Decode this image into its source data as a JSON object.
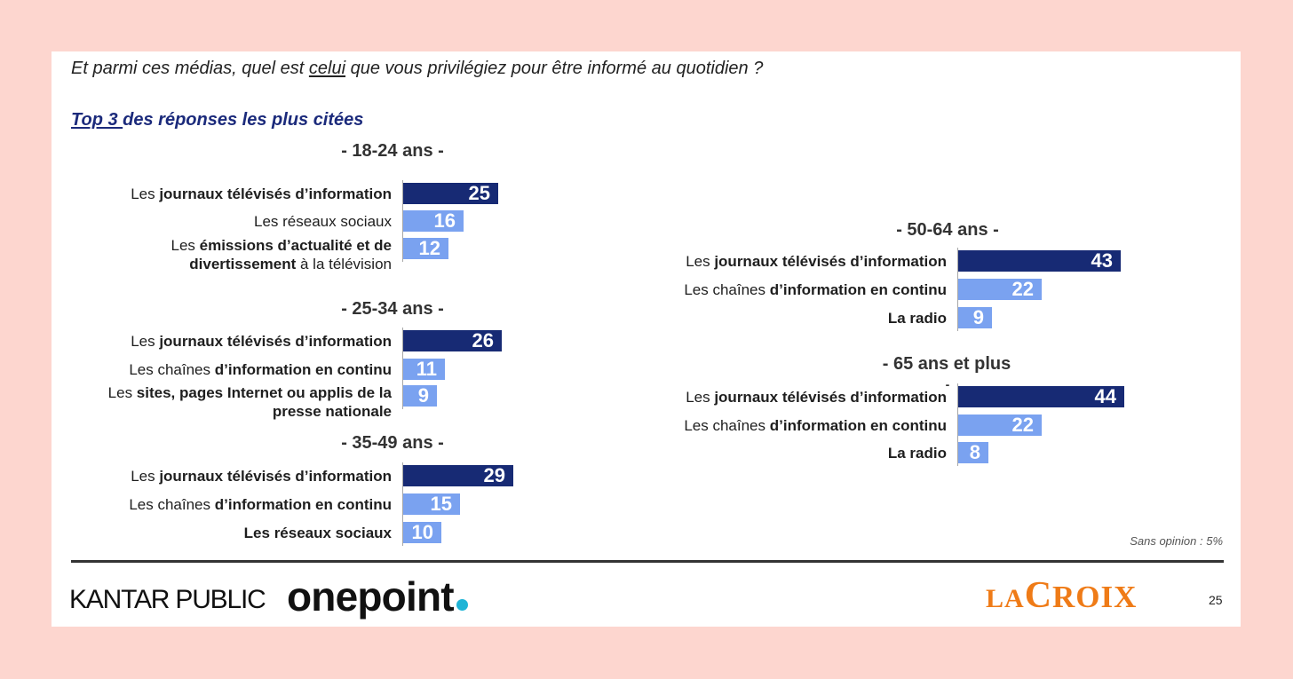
{
  "header": {
    "question_before": "Et parmi ces médias, quel est ",
    "question_underlined": "celui",
    "question_after": " que vous privilégiez pour être informé au quotidien ?",
    "subtitle_underlined": "Top 3 ",
    "subtitle_rest": "des réponses les plus citées"
  },
  "chart_data": [
    {
      "type": "bar",
      "orientation": "horizontal",
      "title": "- 18-24 ans -",
      "categories": [
        "Les journaux télévisés d’information",
        "Les réseaux sociaux",
        "Les émissions d’actualité et de divertissement à la télévision"
      ],
      "emphasis": [
        "journaux télévisés d’information",
        "",
        "émissions d’actualité et de divertissement"
      ],
      "values": [
        25,
        16,
        12
      ]
    },
    {
      "type": "bar",
      "orientation": "horizontal",
      "title": "- 25-34 ans -",
      "categories": [
        "Les journaux télévisés d’information",
        "Les chaînes d’information en continu",
        "Les sites, pages Internet ou applis de la presse nationale"
      ],
      "emphasis": [
        "journaux télévisés d’information",
        "d’information en continu",
        "sites, pages Internet ou applis de la presse nationale"
      ],
      "values": [
        26,
        11,
        9
      ]
    },
    {
      "type": "bar",
      "orientation": "horizontal",
      "title": "- 35-49 ans -",
      "categories": [
        "Les journaux télévisés d’information",
        "Les chaînes d’information en continu",
        "Les réseaux sociaux"
      ],
      "emphasis": [
        "journaux télévisés d’information",
        "d’information en continu",
        "Les réseaux sociaux"
      ],
      "values": [
        29,
        15,
        10
      ]
    },
    {
      "type": "bar",
      "orientation": "horizontal",
      "title": "- 50-64 ans -",
      "categories": [
        "Les journaux télévisés d’information",
        "Les chaînes d’information en continu",
        "La radio"
      ],
      "emphasis": [
        "journaux télévisés d’information",
        "d’information en continu",
        "La radio"
      ],
      "values": [
        43,
        22,
        9
      ]
    },
    {
      "type": "bar",
      "orientation": "horizontal",
      "title": "- 65 ans et plus",
      "title_tail": "-",
      "categories": [
        "Les journaux télévisés d’information",
        "Les chaînes d’information en continu",
        "La radio"
      ],
      "emphasis": [
        "journaux télévisés d’information",
        "d’information en continu",
        "La radio"
      ],
      "values": [
        44,
        22,
        8
      ]
    }
  ],
  "footnote": "Sans opinion : 5%",
  "footer": {
    "kantar_logo": "KANTAR PUBLIC",
    "onepoint_logo": "onepoint",
    "onepoint_dot": ".",
    "lacroix_la": "LA",
    "lacroix_c": "C",
    "lacroix_roix": "ROIX",
    "page_number": "25"
  },
  "colors": {
    "background": "#fdd6cf",
    "bar_top": "#172a74",
    "bar_other": "#7aa2f0",
    "subtitle": "#1b2a7b",
    "lacroix_logo": "#ef7b17",
    "onepoint_dot": "#1fb4d6"
  }
}
